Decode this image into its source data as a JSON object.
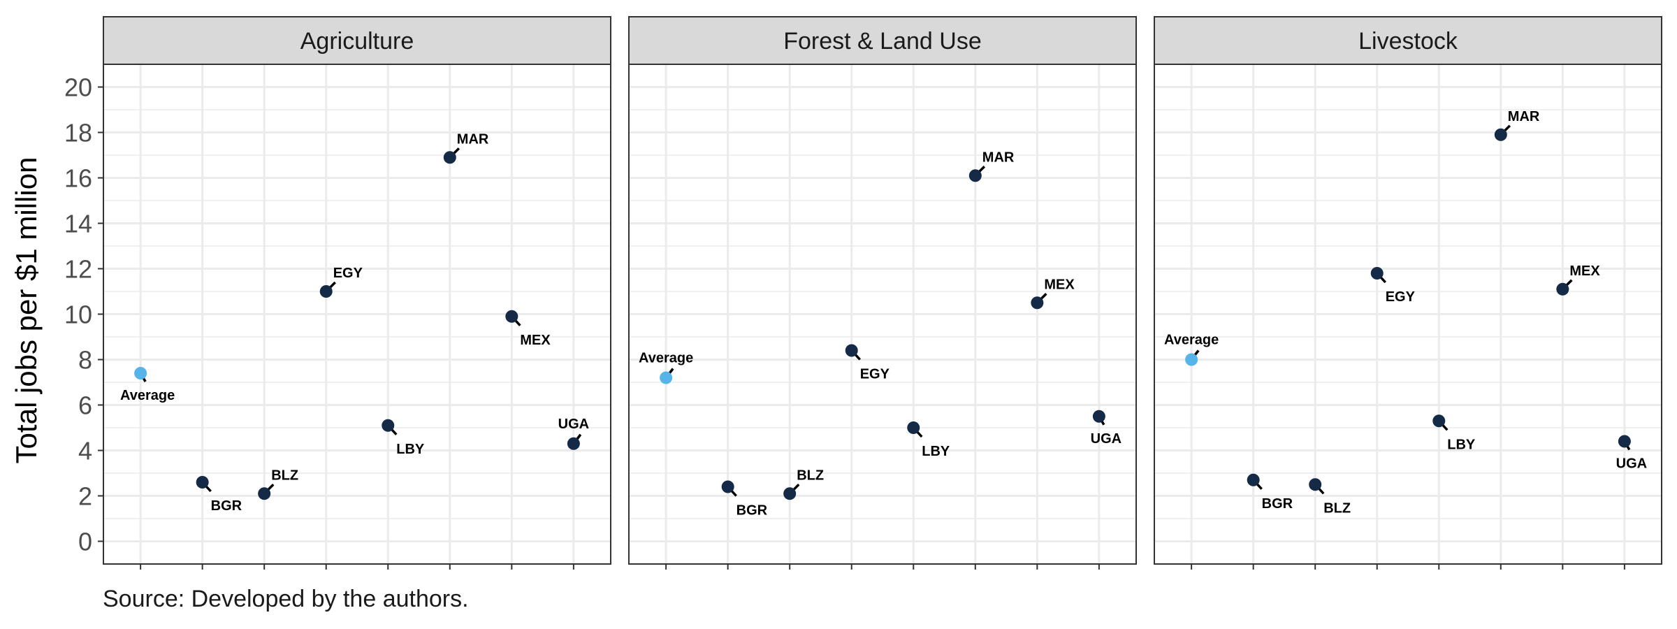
{
  "chart_data": {
    "type": "scatter",
    "ylabel": "Total jobs per $1 million",
    "ylim": [
      -1,
      21
    ],
    "yticks": [
      0,
      2,
      4,
      6,
      8,
      10,
      12,
      14,
      16,
      18,
      20
    ],
    "grid": true,
    "caption": "Source: Developed by the authors.",
    "colors": {
      "country": "#142a46",
      "average": "#56b4e9"
    },
    "x_categories": [
      "Average",
      "BGR",
      "BLZ",
      "EGY",
      "LBY",
      "MAR",
      "MEX",
      "UGA"
    ],
    "panels": [
      {
        "name": "Agriculture",
        "points": [
          {
            "label": "Average",
            "y": 7.4,
            "highlight": true
          },
          {
            "label": "BGR",
            "y": 2.6
          },
          {
            "label": "BLZ",
            "y": 2.1
          },
          {
            "label": "EGY",
            "y": 11.0
          },
          {
            "label": "LBY",
            "y": 5.1
          },
          {
            "label": "MAR",
            "y": 16.9
          },
          {
            "label": "MEX",
            "y": 9.9
          },
          {
            "label": "UGA",
            "y": 4.3
          }
        ]
      },
      {
        "name": "Forest & Land Use",
        "points": [
          {
            "label": "Average",
            "y": 7.2,
            "highlight": true
          },
          {
            "label": "BGR",
            "y": 2.4
          },
          {
            "label": "BLZ",
            "y": 2.1
          },
          {
            "label": "EGY",
            "y": 8.4
          },
          {
            "label": "LBY",
            "y": 5.0
          },
          {
            "label": "MAR",
            "y": 16.1
          },
          {
            "label": "MEX",
            "y": 10.5
          },
          {
            "label": "UGA",
            "y": 5.5
          }
        ]
      },
      {
        "name": "Livestock",
        "points": [
          {
            "label": "Average",
            "y": 8.0,
            "highlight": true
          },
          {
            "label": "BGR",
            "y": 2.7
          },
          {
            "label": "BLZ",
            "y": 2.5
          },
          {
            "label": "EGY",
            "y": 11.8
          },
          {
            "label": "LBY",
            "y": 5.3
          },
          {
            "label": "MAR",
            "y": 17.9
          },
          {
            "label": "MEX",
            "y": 11.1
          },
          {
            "label": "UGA",
            "y": 4.4
          }
        ]
      }
    ]
  }
}
